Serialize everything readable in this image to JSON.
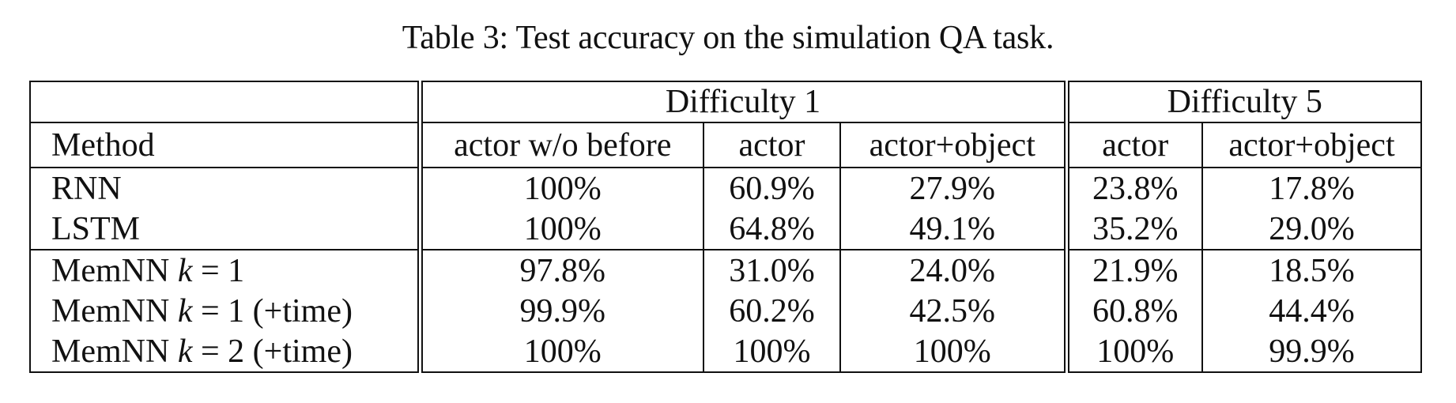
{
  "caption": "Table 3: Test accuracy on the simulation QA task.",
  "groups": {
    "d1": "Difficulty 1",
    "d5": "Difficulty 5"
  },
  "columns": {
    "method": "Method",
    "d1_actor_wo_before": "actor w/o before",
    "d1_actor": "actor",
    "d1_actor_object": "actor+object",
    "d5_actor": "actor",
    "d5_actor_object": "actor+object"
  },
  "rows": [
    {
      "method": "RNN",
      "values": [
        "100%",
        "60.9%",
        "27.9%",
        "23.8%",
        "17.8%"
      ]
    },
    {
      "method": "LSTM",
      "values": [
        "100%",
        "64.8%",
        "49.1%",
        "35.2%",
        "29.0%"
      ]
    },
    {
      "method_prefix": "MemNN ",
      "method_var": "k",
      "method_eq": " = 1",
      "method_suffix": "",
      "values": [
        "97.8%",
        "31.0%",
        "24.0%",
        "21.9%",
        "18.5%"
      ]
    },
    {
      "method_prefix": "MemNN ",
      "method_var": "k",
      "method_eq": " = 1",
      "method_suffix": " (+time)",
      "values": [
        "99.9%",
        "60.2%",
        "42.5%",
        "60.8%",
        "44.4%"
      ]
    },
    {
      "method_prefix": "MemNN ",
      "method_var": "k",
      "method_eq": " = 2",
      "method_suffix": " (+time)",
      "values": [
        "100%",
        "100%",
        "100%",
        "100%",
        "99.9%"
      ]
    }
  ]
}
